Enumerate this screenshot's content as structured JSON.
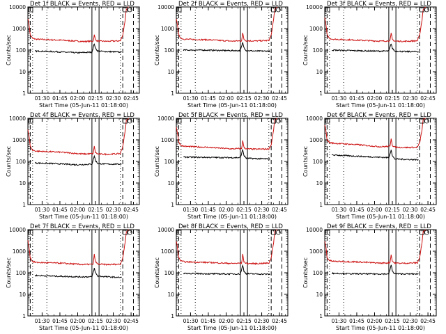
{
  "colors": {
    "events": "#000000",
    "lld": "#cc1111",
    "axis": "#000000"
  },
  "panels": [
    {
      "title": "Det 1f BLACK = Events, RED = LLD",
      "xlabel": "Start Time (05-Jun-11 01:18:00)",
      "ylabel": "Counts/sec"
    },
    {
      "title": "Det 2f BLACK = Events, RED = LLD",
      "xlabel": "Start Time (05-Jun-11 01:18:00)",
      "ylabel": "Counts/sec"
    },
    {
      "title": "Det 3f BLACK = Events, RED = LLD",
      "xlabel": "Start Time (05-Jun-11 01:18:00)",
      "ylabel": "Counts/sec"
    },
    {
      "title": "Det 4f BLACK = Events, RED = LLD",
      "xlabel": "Start Time (05-Jun-11 01:18:00)",
      "ylabel": "Counts/sec"
    },
    {
      "title": "Det 5f BLACK = Events, RED = LLD",
      "xlabel": "Start Time (05-Jun-11 01:18:00)",
      "ylabel": "Counts/sec"
    },
    {
      "title": "Det 6f BLACK = Events, RED = LLD",
      "xlabel": "Start Time (05-Jun-11 01:18:00)",
      "ylabel": "Counts/sec"
    },
    {
      "title": "Det 7f BLACK = Events, RED = LLD",
      "xlabel": "Start Time (05-Jun-11 01:18:00)",
      "ylabel": "Counts/sec"
    },
    {
      "title": "Det 8f BLACK = Events, RED = LLD",
      "xlabel": "Start Time (05-Jun-11 01:18:00)",
      "ylabel": "Counts/sec"
    },
    {
      "title": "Det 9f BLACK = Events, RED = LLD",
      "xlabel": "Start Time (05-Jun-11 01:18:00)",
      "ylabel": "Counts/sec"
    }
  ],
  "chart_data": [
    {
      "type": "line",
      "title": "Det 1f BLACK = Events, RED = LLD",
      "xlabel": "Start Time (05-Jun-11 01:18:00)",
      "ylabel": "Counts/sec",
      "xlim": [
        "01:18",
        "02:52"
      ],
      "ylim": [
        1,
        10000
      ],
      "yscale": "log",
      "xticks": [
        "01:30",
        "01:45",
        "02:00",
        "02:15",
        "02:30",
        "02:45"
      ],
      "yticks": [
        "1",
        "10",
        "100",
        "1000",
        "10000"
      ],
      "series": [
        {
          "name": "LLD",
          "color": "#cc1111",
          "x": [
            "01:18",
            "01:19",
            "01:20",
            "01:22",
            "01:25",
            "01:45",
            "02:05",
            "02:13",
            "02:14",
            "02:15",
            "02:17",
            "02:25",
            "02:36",
            "02:38",
            "02:40",
            "02:41",
            "02:43"
          ],
          "y": [
            3000,
            1500,
            500,
            350,
            320,
            290,
            250,
            260,
            500,
            300,
            260,
            255,
            270,
            500,
            2500,
            8000,
            10000
          ]
        },
        {
          "name": "Events",
          "color": "#000000",
          "x": [
            "01:24",
            "01:40",
            "02:00",
            "02:12",
            "02:14",
            "02:15",
            "02:17",
            "02:25",
            "02:37"
          ],
          "y": [
            90,
            85,
            75,
            80,
            200,
            120,
            90,
            85,
            80
          ]
        }
      ]
    },
    {
      "type": "line",
      "title": "Det 2f BLACK = Events, RED = LLD",
      "xlabel": "Start Time (05-Jun-11 01:18:00)",
      "ylabel": "Counts/sec",
      "xlim": [
        "01:18",
        "02:52"
      ],
      "ylim": [
        1,
        10000
      ],
      "yscale": "log",
      "xticks": [
        "01:30",
        "01:45",
        "02:00",
        "02:15",
        "02:30",
        "02:45"
      ],
      "yticks": [
        "1",
        "10",
        "100",
        "1000",
        "10000"
      ],
      "series": [
        {
          "name": "LLD",
          "color": "#cc1111",
          "x": [
            "01:18",
            "01:19",
            "01:20",
            "01:22",
            "01:25",
            "01:45",
            "02:05",
            "02:13",
            "02:14",
            "02:15",
            "02:17",
            "02:25",
            "02:36",
            "02:38",
            "02:40",
            "02:41",
            "02:43"
          ],
          "y": [
            3000,
            1500,
            500,
            350,
            320,
            300,
            260,
            270,
            600,
            320,
            270,
            265,
            280,
            500,
            2500,
            8000,
            10000
          ]
        },
        {
          "name": "Events",
          "color": "#000000",
          "x": [
            "01:24",
            "01:40",
            "02:00",
            "02:12",
            "02:14",
            "02:15",
            "02:17",
            "02:25",
            "02:37"
          ],
          "y": [
            100,
            100,
            95,
            95,
            220,
            130,
            95,
            90,
            90
          ]
        }
      ]
    },
    {
      "type": "line",
      "title": "Det 3f BLACK = Events, RED = LLD",
      "xlabel": "Start Time (05-Jun-11 01:18:00)",
      "ylabel": "Counts/sec",
      "xlim": [
        "01:18",
        "02:52"
      ],
      "ylim": [
        1,
        10000
      ],
      "yscale": "log",
      "xticks": [
        "01:30",
        "01:45",
        "02:00",
        "02:15",
        "02:30",
        "02:45"
      ],
      "yticks": [
        "1",
        "10",
        "100",
        "1000",
        "10000"
      ],
      "series": [
        {
          "name": "LLD",
          "color": "#cc1111",
          "x": [
            "01:18",
            "01:19",
            "01:20",
            "01:22",
            "01:25",
            "01:45",
            "02:05",
            "02:13",
            "02:14",
            "02:15",
            "02:17",
            "02:25",
            "02:36",
            "02:38",
            "02:40",
            "02:41",
            "02:43"
          ],
          "y": [
            3000,
            1500,
            500,
            350,
            320,
            290,
            260,
            270,
            600,
            310,
            260,
            255,
            270,
            500,
            2500,
            8000,
            10000
          ]
        },
        {
          "name": "Events",
          "color": "#000000",
          "x": [
            "01:24",
            "01:40",
            "02:00",
            "02:12",
            "02:14",
            "02:15",
            "02:17",
            "02:25",
            "02:37"
          ],
          "y": [
            100,
            95,
            90,
            90,
            200,
            120,
            90,
            85,
            85
          ]
        }
      ]
    },
    {
      "type": "line",
      "title": "Det 4f BLACK = Events, RED = LLD",
      "xlabel": "Start Time (05-Jun-11 01:18:00)",
      "ylabel": "Counts/sec",
      "xlim": [
        "01:18",
        "02:52"
      ],
      "ylim": [
        1,
        10000
      ],
      "yscale": "log",
      "xticks": [
        "01:30",
        "01:45",
        "02:00",
        "02:15",
        "02:30",
        "02:45"
      ],
      "yticks": [
        "1",
        "10",
        "100",
        "1000",
        "10000"
      ],
      "series": [
        {
          "name": "LLD",
          "color": "#cc1111",
          "x": [
            "01:18",
            "01:19",
            "01:20",
            "01:22",
            "01:25",
            "01:45",
            "02:05",
            "02:13",
            "02:14",
            "02:15",
            "02:17",
            "02:25",
            "02:36",
            "02:38",
            "02:40",
            "02:41",
            "02:43"
          ],
          "y": [
            3000,
            1500,
            500,
            330,
            300,
            270,
            220,
            230,
            500,
            260,
            220,
            215,
            230,
            500,
            2500,
            8000,
            10000
          ]
        },
        {
          "name": "Events",
          "color": "#000000",
          "x": [
            "01:24",
            "01:40",
            "02:00",
            "02:12",
            "02:14",
            "02:15",
            "02:17",
            "02:25",
            "02:37"
          ],
          "y": [
            85,
            80,
            70,
            75,
            180,
            110,
            80,
            75,
            75
          ]
        }
      ]
    },
    {
      "type": "line",
      "title": "Det 5f BLACK = Events, RED = LLD",
      "xlabel": "Start Time (05-Jun-11 01:18:00)",
      "ylabel": "Counts/sec",
      "xlim": [
        "01:18",
        "02:52"
      ],
      "ylim": [
        1,
        10000
      ],
      "yscale": "log",
      "xticks": [
        "01:30",
        "01:45",
        "02:00",
        "02:15",
        "02:30",
        "02:45"
      ],
      "yticks": [
        "1",
        "10",
        "100",
        "1000",
        "10000"
      ],
      "series": [
        {
          "name": "LLD",
          "color": "#cc1111",
          "x": [
            "01:18",
            "01:19",
            "01:20",
            "01:22",
            "01:25",
            "01:45",
            "02:05",
            "02:13",
            "02:14",
            "02:15",
            "02:17",
            "02:25",
            "02:36",
            "02:38",
            "02:40",
            "02:41",
            "02:43"
          ],
          "y": [
            4000,
            2000,
            800,
            550,
            500,
            450,
            380,
            400,
            900,
            450,
            380,
            370,
            380,
            600,
            2800,
            8500,
            10000
          ]
        },
        {
          "name": "Events",
          "color": "#000000",
          "x": [
            "01:24",
            "01:40",
            "02:00",
            "02:12",
            "02:14",
            "02:15",
            "02:17",
            "02:25",
            "02:37"
          ],
          "y": [
            160,
            155,
            150,
            150,
            350,
            190,
            140,
            135,
            130
          ]
        }
      ]
    },
    {
      "type": "line",
      "title": "Det 6f BLACK = Events, RED = LLD",
      "xlabel": "Start Time (05-Jun-11 01:18:00)",
      "ylabel": "Counts/sec",
      "xlim": [
        "01:18",
        "02:52"
      ],
      "ylim": [
        1,
        10000
      ],
      "yscale": "log",
      "xticks": [
        "01:30",
        "01:45",
        "02:00",
        "02:15",
        "02:30",
        "02:45"
      ],
      "yticks": [
        "1",
        "10",
        "100",
        "1000",
        "10000"
      ],
      "series": [
        {
          "name": "LLD",
          "color": "#cc1111",
          "x": [
            "01:18",
            "01:19",
            "01:20",
            "01:22",
            "01:25",
            "01:45",
            "02:05",
            "02:13",
            "02:14",
            "02:15",
            "02:17",
            "02:25",
            "02:36",
            "02:38",
            "02:40",
            "02:41",
            "02:43"
          ],
          "y": [
            5000,
            2500,
            1000,
            750,
            700,
            600,
            480,
            500,
            1200,
            550,
            460,
            440,
            450,
            700,
            3000,
            9000,
            10000
          ]
        },
        {
          "name": "Events",
          "color": "#000000",
          "x": [
            "01:24",
            "01:40",
            "02:00",
            "02:12",
            "02:14",
            "02:15",
            "02:17",
            "02:25",
            "02:37"
          ],
          "y": [
            200,
            180,
            160,
            150,
            350,
            180,
            130,
            125,
            120
          ]
        }
      ]
    },
    {
      "type": "line",
      "title": "Det 7f BLACK = Events, RED = LLD",
      "xlabel": "Start Time (05-Jun-11 01:18:00)",
      "ylabel": "Counts/sec",
      "xlim": [
        "01:18",
        "02:52"
      ],
      "ylim": [
        1,
        10000
      ],
      "yscale": "log",
      "xticks": [
        "01:30",
        "01:45",
        "02:00",
        "02:15",
        "02:30",
        "02:45"
      ],
      "yticks": [
        "1",
        "10",
        "100",
        "1000",
        "10000"
      ],
      "series": [
        {
          "name": "LLD",
          "color": "#cc1111",
          "x": [
            "01:18",
            "01:19",
            "01:20",
            "01:22",
            "01:25",
            "01:45",
            "02:05",
            "02:13",
            "02:14",
            "02:15",
            "02:17",
            "02:25",
            "02:36",
            "02:38",
            "02:40",
            "02:41",
            "02:43"
          ],
          "y": [
            3000,
            1500,
            500,
            330,
            300,
            280,
            240,
            250,
            700,
            330,
            250,
            240,
            250,
            500,
            2500,
            8000,
            10000
          ]
        },
        {
          "name": "Events",
          "color": "#000000",
          "x": [
            "01:24",
            "01:40",
            "02:00",
            "02:12",
            "02:14",
            "02:15",
            "02:17",
            "02:25",
            "02:37"
          ],
          "y": [
            75,
            70,
            65,
            65,
            160,
            100,
            70,
            65,
            60
          ]
        }
      ]
    },
    {
      "type": "line",
      "title": "Det 8f BLACK = Events, RED = LLD",
      "xlabel": "Start Time (05-Jun-11 01:18:00)",
      "ylabel": "Counts/sec",
      "xlim": [
        "01:18",
        "02:52"
      ],
      "ylim": [
        1,
        10000
      ],
      "yscale": "log",
      "xticks": [
        "01:30",
        "01:45",
        "02:00",
        "02:15",
        "02:30",
        "02:45"
      ],
      "yticks": [
        "1",
        "10",
        "100",
        "1000",
        "10000"
      ],
      "series": [
        {
          "name": "LLD",
          "color": "#cc1111",
          "x": [
            "01:18",
            "01:19",
            "01:20",
            "01:22",
            "01:25",
            "01:45",
            "02:05",
            "02:13",
            "02:14",
            "02:15",
            "02:17",
            "02:25",
            "02:36",
            "02:38",
            "02:40",
            "02:41",
            "02:43"
          ],
          "y": [
            3000,
            1500,
            500,
            350,
            320,
            300,
            270,
            280,
            700,
            330,
            270,
            265,
            280,
            500,
            2500,
            8000,
            10000
          ]
        },
        {
          "name": "Events",
          "color": "#000000",
          "x": [
            "01:24",
            "01:40",
            "02:00",
            "02:12",
            "02:14",
            "02:15",
            "02:17",
            "02:25",
            "02:37"
          ],
          "y": [
            95,
            90,
            88,
            88,
            220,
            120,
            90,
            88,
            85
          ]
        }
      ]
    },
    {
      "type": "line",
      "title": "Det 9f BLACK = Events, RED = LLD",
      "xlabel": "Start Time (05-Jun-11 01:18:00)",
      "ylabel": "Counts/sec",
      "xlim": [
        "01:18",
        "02:52"
      ],
      "ylim": [
        1,
        10000
      ],
      "yscale": "log",
      "xticks": [
        "01:30",
        "01:45",
        "02:00",
        "02:15",
        "02:30",
        "02:45"
      ],
      "yticks": [
        "1",
        "10",
        "100",
        "1000",
        "10000"
      ],
      "series": [
        {
          "name": "LLD",
          "color": "#cc1111",
          "x": [
            "01:18",
            "01:19",
            "01:20",
            "01:22",
            "01:25",
            "01:45",
            "02:05",
            "02:13",
            "02:14",
            "02:15",
            "02:17",
            "02:25",
            "02:36",
            "02:38",
            "02:40",
            "02:41",
            "02:43"
          ],
          "y": [
            3000,
            1500,
            500,
            370,
            340,
            320,
            280,
            290,
            700,
            340,
            280,
            275,
            290,
            500,
            2500,
            8000,
            10000
          ]
        },
        {
          "name": "Events",
          "color": "#000000",
          "x": [
            "01:24",
            "01:40",
            "02:00",
            "02:12",
            "02:14",
            "02:15",
            "02:17",
            "02:25",
            "02:37"
          ],
          "y": [
            95,
            90,
            88,
            88,
            230,
            120,
            90,
            88,
            88
          ]
        }
      ]
    }
  ]
}
